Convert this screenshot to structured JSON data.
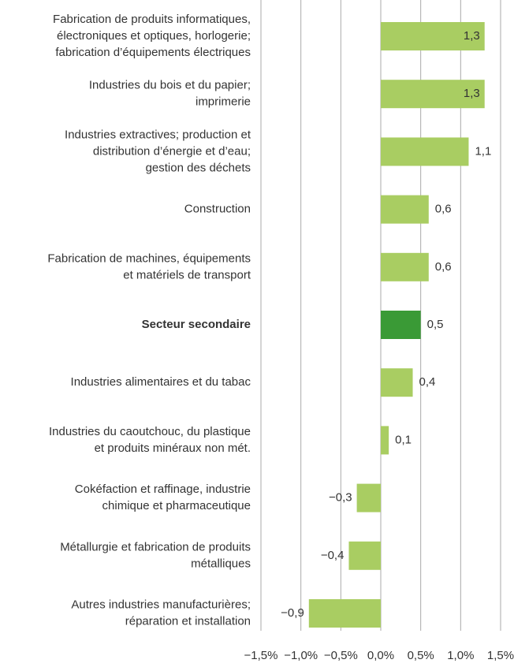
{
  "chart_data": {
    "type": "bar",
    "orientation": "horizontal",
    "categories": [
      [
        "Fabrication de produits informatiques,",
        "électroniques et optiques, horlogerie;",
        "fabrication d’équipements électriques"
      ],
      [
        "Industries du bois et du papier;",
        "imprimerie"
      ],
      [
        "Industries extractives; production et",
        "distribution d’énergie et d’eau;",
        "gestion des déchets"
      ],
      [
        "Construction"
      ],
      [
        "Fabrication de machines, équipements",
        "et matériels de transport"
      ],
      [
        "Secteur secondaire"
      ],
      [
        "Industries alimentaires et du tabac"
      ],
      [
        "Industries du caoutchouc, du plastique",
        "et produits minéraux non mét."
      ],
      [
        "Cokéfaction et raffinage, industrie",
        "chimique et pharmaceutique"
      ],
      [
        "Métallurgie et fabrication de produits",
        "métalliques"
      ],
      [
        "Autres industries manufacturières;",
        "réparation et installation"
      ]
    ],
    "values": [
      1.3,
      1.3,
      1.1,
      0.6,
      0.6,
      0.5,
      0.4,
      0.1,
      -0.3,
      -0.4,
      -0.9
    ],
    "value_labels": [
      "1,3",
      "1,3",
      "1,1",
      "0,6",
      "0,6",
      "0,5",
      "0,4",
      "0,1",
      "−0,3",
      "−0,4",
      "−0,9"
    ],
    "colors": [
      "#a9cd62",
      "#a9cd62",
      "#a9cd62",
      "#a9cd62",
      "#a9cd62",
      "#3a9a36",
      "#a9cd62",
      "#a9cd62",
      "#a9cd62",
      "#a9cd62",
      "#a9cd62"
    ],
    "bold_categories": [
      false,
      false,
      false,
      false,
      false,
      true,
      false,
      false,
      false,
      false,
      false
    ],
    "xlim": [
      -1.5,
      1.5
    ],
    "xticks": [
      {
        "value": -1.5,
        "label": "−1,5%"
      },
      {
        "value": -1.0,
        "label": "−1,0%"
      },
      {
        "value": -0.5,
        "label": "−0,5%"
      },
      {
        "value": 0,
        "label": "0,0%"
      },
      {
        "value": 0.5,
        "label": "0,5%"
      },
      {
        "value": 1.0,
        "label": "1,0%"
      },
      {
        "value": 1.5,
        "label": "1,5%"
      }
    ],
    "grid": true
  }
}
